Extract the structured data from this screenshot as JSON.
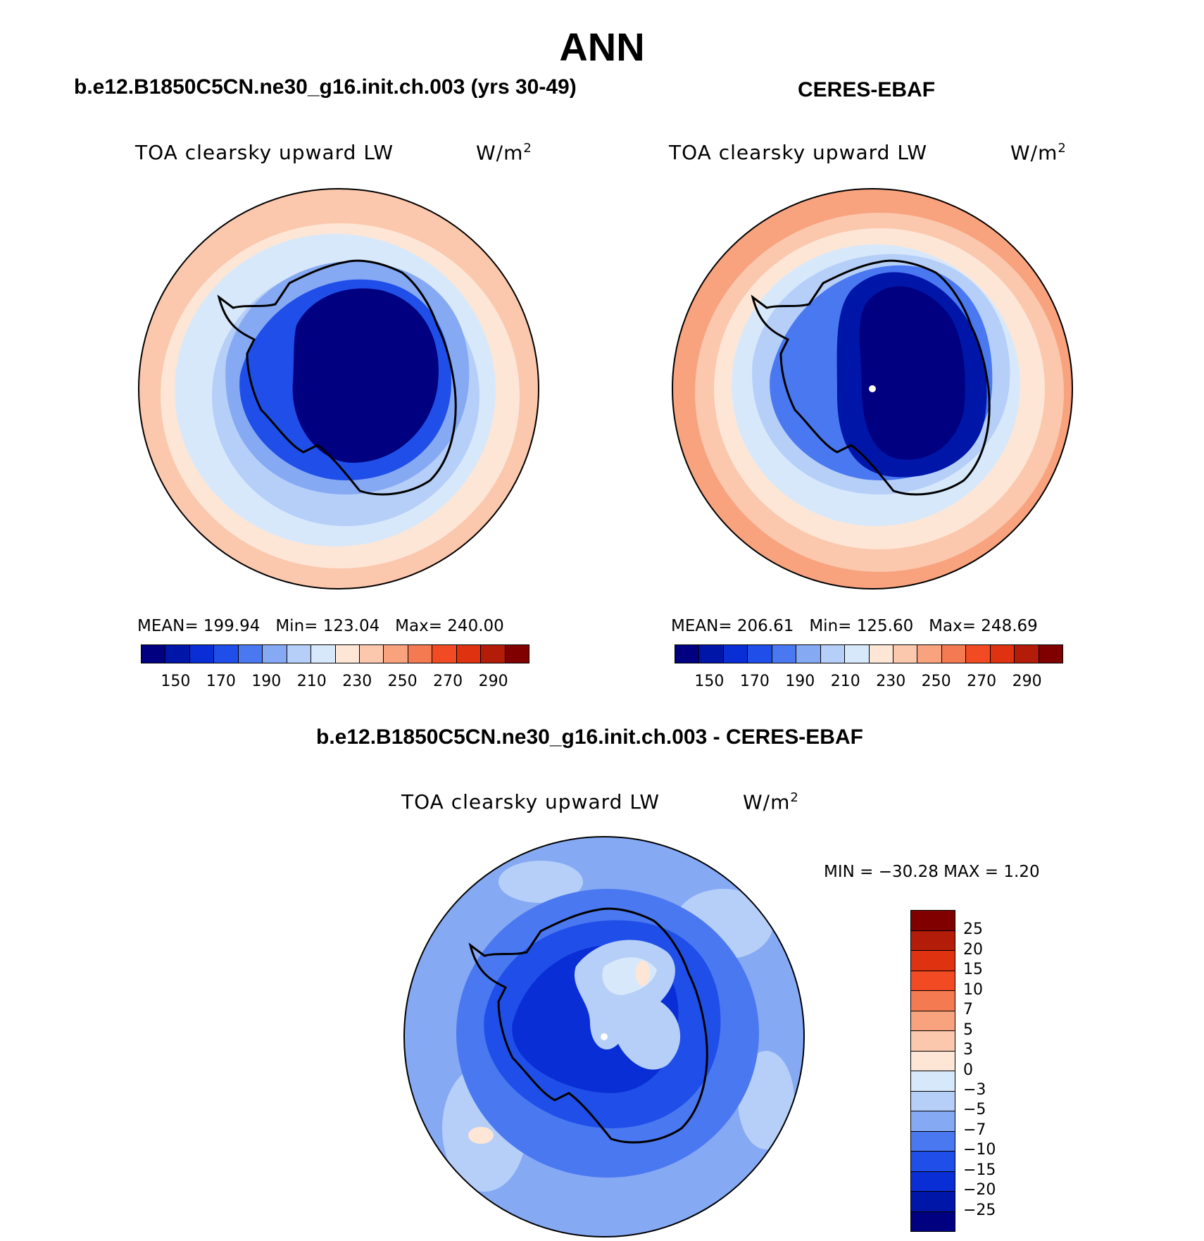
{
  "title": "ANN",
  "panels": [
    {
      "case": "b.e12.B1850C5CN.ne30_g16.init.ch.003 (yrs 30-49)",
      "variable": "TOA clearsky upward LW",
      "units": "W/m",
      "units_sup": "2",
      "stats": {
        "mean_label": "MEAN=",
        "mean": "199.94",
        "min_label": "Min=",
        "min": "123.04",
        "max_label": "Max=",
        "max": "240.00"
      }
    },
    {
      "case": "CERES-EBAF",
      "variable": "TOA clearsky upward LW",
      "units": "W/m",
      "units_sup": "2",
      "stats": {
        "mean_label": "MEAN=",
        "mean": "206.61",
        "min_label": "Min=",
        "min": "125.60",
        "max_label": "Max=",
        "max": "248.69"
      }
    }
  ],
  "diff": {
    "case": "b.e12.B1850C5CN.ne30_g16.init.ch.003 - CERES-EBAF",
    "variable": "TOA clearsky upward LW",
    "units": "W/m",
    "units_sup": "2",
    "minmax": "MIN = −30.28 MAX =    1.20"
  },
  "abs_colorbar": {
    "colors": [
      "#000080",
      "#0016a8",
      "#0a2ed6",
      "#1f4fe8",
      "#4a78f0",
      "#86a9f4",
      "#b6cff8",
      "#d8e8fb",
      "#fde6d6",
      "#fbc7ad",
      "#f8a27e",
      "#f47a52",
      "#f24a22",
      "#df3210",
      "#b31c08",
      "#800000"
    ],
    "ticks": [
      "150",
      "170",
      "190",
      "210",
      "230",
      "250",
      "270",
      "290"
    ]
  },
  "diff_colorbar": {
    "colors": [
      "#800000",
      "#b31c08",
      "#df3210",
      "#f24a22",
      "#f47a52",
      "#f8a27e",
      "#fbc7ad",
      "#fde6d6",
      "#d8e8fb",
      "#b6cff8",
      "#86a9f4",
      "#4a78f0",
      "#1f4fe8",
      "#0a2ed6",
      "#0016a8",
      "#000080"
    ],
    "labels": [
      "25",
      "20",
      "15",
      "10",
      "7",
      "5",
      "3",
      "0",
      "−3",
      "−5",
      "−7",
      "−10",
      "−15",
      "−20",
      "−25"
    ]
  }
}
